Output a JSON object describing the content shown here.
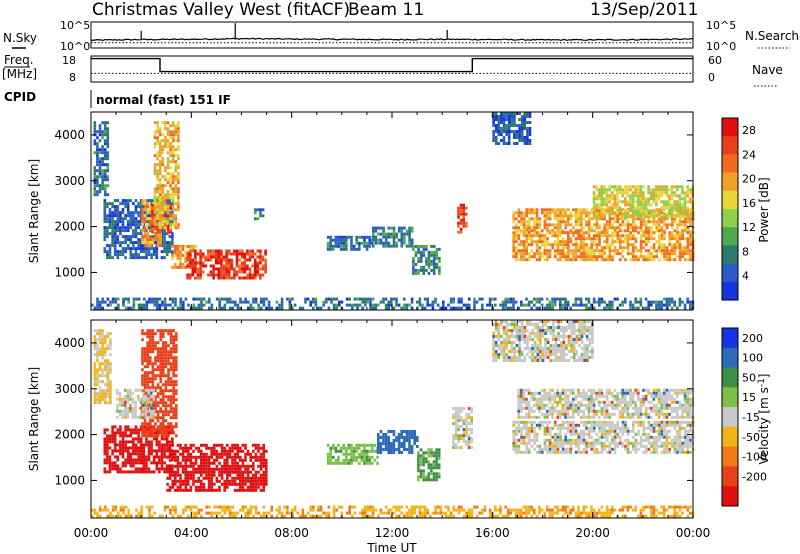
{
  "header": {
    "station": "Christmas Valley West (fitACF)",
    "beam": "Beam 11",
    "date": "13/Sep/2011"
  },
  "top_panels": {
    "nsky_label": "N.Sky",
    "nsearch_label": "N.Search",
    "noise_ticks": [
      "10^5",
      "10^0"
    ],
    "freq_label_1": "Freq.",
    "freq_label_2": "[MHz]",
    "freq_ticks": [
      "18",
      "8"
    ],
    "nave_label": "Nave",
    "nave_ticks": [
      "60",
      "0"
    ],
    "cpid_label": "CPID",
    "cpid_text": "normal (fast) 151 IF"
  },
  "chart_data": [
    {
      "type": "line",
      "name": "noise",
      "x_range_hours": [
        0,
        24
      ],
      "ylim": [
        1,
        100000
      ],
      "log_scale": true,
      "series": [
        {
          "name": "N.Sky",
          "x": [
            0,
            2,
            4,
            6,
            8,
            10,
            12,
            14,
            16,
            18,
            20,
            22,
            24
          ],
          "values": [
            30,
            40,
            45,
            60,
            50,
            45,
            40,
            45,
            40,
            35,
            35,
            40,
            50
          ]
        },
        {
          "name": "N.Search",
          "x": [
            0,
            24
          ],
          "values": [
            10,
            10
          ]
        }
      ]
    },
    {
      "type": "line",
      "name": "frequency-nave",
      "x_range_hours": [
        0,
        24
      ],
      "series": [
        {
          "name": "Freq. [MHz]",
          "x": [
            0,
            2.75,
            2.75,
            15.2,
            15.2,
            24
          ],
          "values": [
            17,
            17,
            12,
            12,
            17,
            17
          ],
          "ylim": [
            8,
            18
          ]
        },
        {
          "name": "Nave",
          "x": [
            0,
            24
          ],
          "values": [
            20,
            20
          ],
          "ylim": [
            0,
            60
          ]
        }
      ]
    },
    {
      "type": "heatmap",
      "name": "power",
      "xlabel": "",
      "ylabel": "Slant Range [km]",
      "x_range_hours": [
        0,
        24
      ],
      "ylim": [
        180,
        4500
      ],
      "y_ticks": [
        1000,
        2000,
        3000,
        4000
      ],
      "colorbar": {
        "label": "Power [dB]",
        "ticks": [
          4,
          8,
          12,
          16,
          20,
          24,
          28
        ],
        "colors": [
          "#1535e0",
          "#2a5cc8",
          "#2d7a6a",
          "#4fa84f",
          "#8fcf4a",
          "#e9d53a",
          "#f0a028",
          "#f26a1e",
          "#e8401a",
          "#e01010"
        ]
      },
      "regions": [
        {
          "x": [
            0.1,
            0.7
          ],
          "y": [
            2700,
            4300
          ],
          "value": 6
        },
        {
          "x": [
            0.5,
            3.2
          ],
          "y": [
            1300,
            2600
          ],
          "value": 5
        },
        {
          "x": [
            2.0,
            2.8
          ],
          "y": [
            1600,
            2600
          ],
          "value": 20
        },
        {
          "x": [
            2.4,
            3.2
          ],
          "y": [
            1900,
            2500
          ],
          "value": 26
        },
        {
          "x": [
            2.5,
            3.5
          ],
          "y": [
            2000,
            4300
          ],
          "value": 18
        },
        {
          "x": [
            3.2,
            4.2
          ],
          "y": [
            1100,
            1600
          ],
          "value": 20
        },
        {
          "x": [
            3.8,
            7.0
          ],
          "y": [
            900,
            1500
          ],
          "value": 26
        },
        {
          "x": [
            6.5,
            6.9
          ],
          "y": [
            2200,
            2400
          ],
          "value": 6
        },
        {
          "x": [
            9.4,
            11.2
          ],
          "y": [
            1500,
            1800
          ],
          "value": 6
        },
        {
          "x": [
            11.2,
            12.8
          ],
          "y": [
            1600,
            2000
          ],
          "value": 7
        },
        {
          "x": [
            12.8,
            13.9
          ],
          "y": [
            1000,
            1600
          ],
          "value": 8
        },
        {
          "x": [
            14.6,
            15.0
          ],
          "y": [
            1900,
            2500
          ],
          "value": 26
        },
        {
          "x": [
            16.0,
            17.5
          ],
          "y": [
            3800,
            4500
          ],
          "value": 5
        },
        {
          "x": [
            16.8,
            24.0
          ],
          "y": [
            1900,
            2400
          ],
          "value": 20
        },
        {
          "x": [
            16.8,
            24.0
          ],
          "y": [
            1300,
            1900
          ],
          "value": 20
        },
        {
          "x": [
            20.0,
            24.0
          ],
          "y": [
            2200,
            2900
          ],
          "value": 16
        },
        {
          "x": [
            0,
            24
          ],
          "y": [
            200,
            450
          ],
          "value": 6
        }
      ]
    },
    {
      "type": "heatmap",
      "name": "velocity",
      "xlabel": "Time UT",
      "ylabel": "Slant Range [km]",
      "x_range_hours": [
        0,
        24
      ],
      "x_ticks": [
        "00:00",
        "04:00",
        "08:00",
        "12:00",
        "16:00",
        "20:00",
        "00:00"
      ],
      "ylim": [
        180,
        4500
      ],
      "y_ticks": [
        1000,
        2000,
        3000,
        4000
      ],
      "colorbar": {
        "label": "Velocity [m s-1]",
        "ticks": [
          200,
          100,
          50,
          15,
          -15,
          -50,
          -100,
          -200
        ],
        "colors": [
          "#1535e0",
          "#2d6ab8",
          "#3f8f4a",
          "#7cc04a",
          "#c8c8c8",
          "#f0b418",
          "#f07818",
          "#e84018",
          "#e01010"
        ]
      },
      "regions": [
        {
          "x": [
            0.1,
            0.8
          ],
          "y": [
            2700,
            4300
          ],
          "value": -20
        },
        {
          "x": [
            0.5,
            3.2
          ],
          "y": [
            1200,
            2200
          ],
          "value": -220
        },
        {
          "x": [
            2.0,
            3.4
          ],
          "y": [
            2000,
            4300
          ],
          "value": -140
        },
        {
          "x": [
            1.0,
            2.5
          ],
          "y": [
            2400,
            3000
          ],
          "value": 0
        },
        {
          "x": [
            3.0,
            7.0
          ],
          "y": [
            800,
            1800
          ],
          "value": -220
        },
        {
          "x": [
            9.4,
            11.4
          ],
          "y": [
            1400,
            1800
          ],
          "value": 40
        },
        {
          "x": [
            11.4,
            13.0
          ],
          "y": [
            1600,
            2100
          ],
          "value": 180
        },
        {
          "x": [
            13.0,
            13.9
          ],
          "y": [
            1000,
            1700
          ],
          "value": 60
        },
        {
          "x": [
            14.4,
            15.2
          ],
          "y": [
            1700,
            2600
          ],
          "value": 0
        },
        {
          "x": [
            16.8,
            24.0
          ],
          "y": [
            1600,
            2300
          ],
          "value": 0
        },
        {
          "x": [
            17.0,
            24.0
          ],
          "y": [
            2400,
            3000
          ],
          "value": 0
        },
        {
          "x": [
            16.0,
            20.0
          ],
          "y": [
            3600,
            4500
          ],
          "value": 0
        },
        {
          "x": [
            0,
            24
          ],
          "y": [
            200,
            450
          ],
          "value": -40
        }
      ]
    }
  ]
}
